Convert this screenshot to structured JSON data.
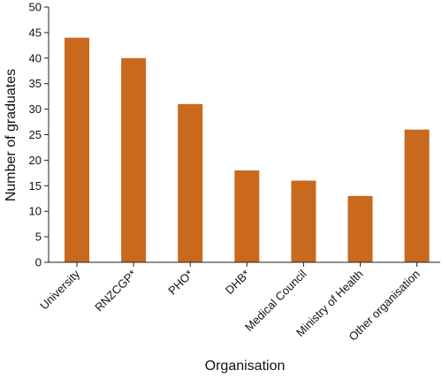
{
  "chart_data": {
    "type": "bar",
    "categories": [
      "University",
      "RNZCGP*",
      "PHO*",
      "DHB*",
      "Medical Council",
      "Ministry of Health",
      "Other organisation"
    ],
    "values": [
      44,
      40,
      31,
      18,
      16,
      13,
      26
    ],
    "title": "",
    "xlabel": "Organisation",
    "ylabel": "Number of graduates",
    "ylim": [
      0,
      50
    ],
    "yticks": [
      0,
      5,
      10,
      15,
      20,
      25,
      30,
      35,
      40,
      45,
      50
    ],
    "bar_color": "#c8691e",
    "grid": false,
    "legend": "none"
  }
}
